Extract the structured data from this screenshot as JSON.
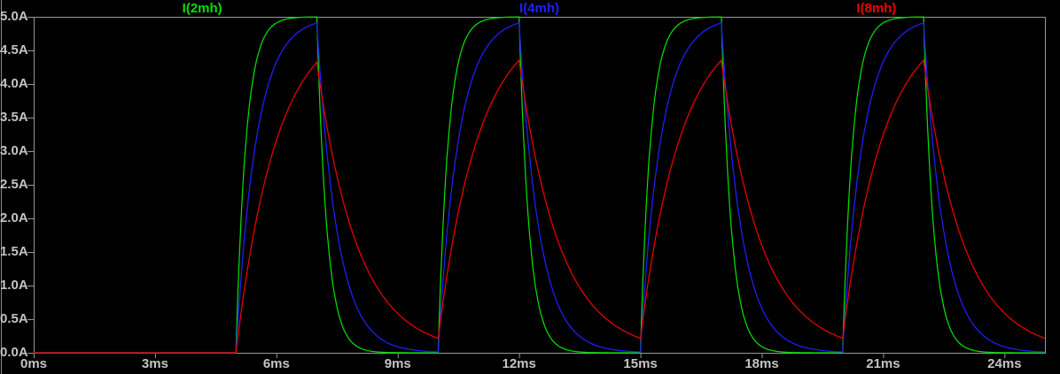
{
  "window": {
    "background_color": "#000000",
    "axis_color": "#989898",
    "label_color": "#c4c4c4"
  },
  "chart_data": {
    "type": "line",
    "description": "Transient simulation of inductor currents through 2mH, 4mH and 8mH inductors driven by a periodic voltage pulse; exponential rise toward 5A while pulse is on, exponential decay while off.",
    "trace_labels": [
      {
        "label": "I(2mh)",
        "color": "#00df00"
      },
      {
        "label": "I(4mh)",
        "color": "#2020ff"
      },
      {
        "label": "I(8mh)",
        "color": "#ee0000"
      }
    ],
    "x_axis": {
      "unit": "ms",
      "min_ms": 0,
      "max_ms": 25,
      "tick_interval_ms": 3,
      "tick_labels": [
        "0ms",
        "3ms",
        "6ms",
        "9ms",
        "12ms",
        "15ms",
        "18ms",
        "21ms",
        "24ms"
      ]
    },
    "y_axis": {
      "unit": "A",
      "min_A": 0,
      "max_A": 5,
      "tick_interval_A": 0.5,
      "tick_labels": [
        "5.0A",
        "4.5A",
        "4.0A",
        "3.5A",
        "3.0A",
        "2.5A",
        "2.0A",
        "1.5A",
        "1.0A",
        "0.5A",
        "0.0A"
      ]
    },
    "excitation": {
      "type": "periodic_pulse",
      "first_rise_ms": 5,
      "on_time_ms": 2,
      "period_ms": 5,
      "steady_state_current_A": 5
    },
    "series": [
      {
        "name": "I(2mh)",
        "color": "#00df00",
        "tau_ms": 0.25,
        "peak_A": 5.0,
        "min_between_pulses_A": 0.0
      },
      {
        "name": "I(4mh)",
        "color": "#2020ff",
        "tau_ms": 0.5,
        "peak_A": 4.9,
        "min_between_pulses_A": 0.01
      },
      {
        "name": "I(8mh)",
        "color": "#ee0000",
        "tau_ms": 1.0,
        "peak_A": 4.33,
        "min_between_pulses_A": 0.21
      }
    ],
    "grid": false,
    "legend_position": "top-spread"
  }
}
